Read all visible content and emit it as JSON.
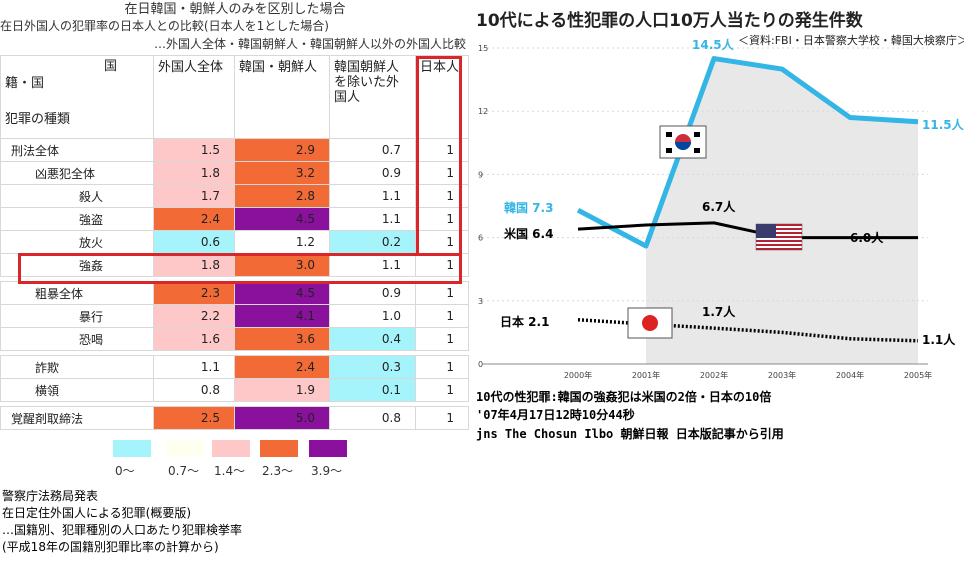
{
  "table": {
    "title": "在日韓国・朝鮮人のみを区別した場合",
    "subtitle1": "在日外国人の犯罪率の日本人との比較(日本人を1とした場合)",
    "subtitle2": "…外国人全体・韓国朝鮮人・韓国朝鮮人以外の外国人比較",
    "header_corner_top": "国",
    "header_corner_mid": "籍・国",
    "header_corner_bottom": "犯罪の種類",
    "columns": [
      "外国人全体",
      "韓国・朝鮮人",
      "韓国朝鮮人を除いた外国人",
      "日本人"
    ],
    "rows": [
      {
        "label": "刑法全体",
        "level": 0,
        "values": [
          "1.5",
          "2.9",
          "0.7",
          "1"
        ],
        "colors": [
          "#ffc8c8",
          "#f26b36",
          "#ffffff",
          "#ffffff"
        ]
      },
      {
        "label": "凶悪犯全体",
        "level": 1,
        "values": [
          "1.8",
          "3.2",
          "0.9",
          "1"
        ],
        "colors": [
          "#ffc8c8",
          "#f26b36",
          "#ffffff",
          "#ffffff"
        ]
      },
      {
        "label": "殺人",
        "level": 2,
        "values": [
          "1.7",
          "2.8",
          "1.1",
          "1"
        ],
        "colors": [
          "#ffc8c8",
          "#f26b36",
          "#ffffff",
          "#ffffff"
        ]
      },
      {
        "label": "強盗",
        "level": 2,
        "values": [
          "2.4",
          "4.5",
          "1.1",
          "1"
        ],
        "colors": [
          "#f26b36",
          "#8a119c",
          "#ffffff",
          "#ffffff"
        ]
      },
      {
        "label": "放火",
        "level": 2,
        "values": [
          "0.6",
          "1.2",
          "0.2",
          "1"
        ],
        "colors": [
          "#a6f4fb",
          "#ffffff",
          "#a6f4fb",
          "#ffffff"
        ]
      },
      {
        "label": "強姦",
        "level": 2,
        "values": [
          "1.8",
          "3.0",
          "1.1",
          "1"
        ],
        "colors": [
          "#ffc8c8",
          "#f26b36",
          "#ffffff",
          "#ffffff"
        ]
      },
      {
        "label": "粗暴全体",
        "level": 1,
        "values": [
          "2.3",
          "4.5",
          "0.9",
          "1"
        ],
        "colors": [
          "#f26b36",
          "#8a119c",
          "#ffffff",
          "#ffffff"
        ]
      },
      {
        "label": "暴行",
        "level": 2,
        "values": [
          "2.2",
          "4.1",
          "1.0",
          "1"
        ],
        "colors": [
          "#ffc8c8",
          "#8a119c",
          "#ffffff",
          "#ffffff"
        ]
      },
      {
        "label": "恐喝",
        "level": 2,
        "values": [
          "1.6",
          "3.6",
          "0.4",
          "1"
        ],
        "colors": [
          "#ffc8c8",
          "#f26b36",
          "#a6f4fb",
          "#ffffff"
        ]
      },
      {
        "label": "詐欺",
        "level": 1,
        "values": [
          "1.1",
          "2.4",
          "0.3",
          "1"
        ],
        "colors": [
          "#ffffff",
          "#f26b36",
          "#a6f4fb",
          "#ffffff"
        ]
      },
      {
        "label": "横領",
        "level": 1,
        "values": [
          "0.8",
          "1.9",
          "0.1",
          "1"
        ],
        "colors": [
          "#ffffff",
          "#ffc8c8",
          "#a6f4fb",
          "#ffffff"
        ]
      },
      {
        "label": "覚醒剤取締法",
        "level": 0,
        "values": [
          "2.5",
          "5.0",
          "0.8",
          "1"
        ],
        "colors": [
          "#f26b36",
          "#8a119c",
          "#ffffff",
          "#ffffff"
        ]
      }
    ],
    "legend": [
      {
        "label": "0〜",
        "color": "#a6f4fb"
      },
      {
        "label": "0.7〜",
        "color": "#ffffef"
      },
      {
        "label": "1.4〜",
        "color": "#ffc8c8"
      },
      {
        "label": "2.3〜",
        "color": "#f26b36"
      },
      {
        "label": "3.9〜",
        "color": "#8a119c"
      }
    ],
    "notes": [
      "警察庁法務局発表",
      "在日定住外国人による犯罪(概要版)",
      "…国籍別、犯罪種別の人口あたり犯罪検挙率",
      "(平成18年の国籍別犯罪比率の計算から)"
    ]
  },
  "chart_data": {
    "type": "line",
    "title": "10代による性犯罪の人口10万人当たりの発生件数",
    "source": "＜資料:FBI・日本警察大学校・韓国大検察庁＞",
    "x": [
      "2000年",
      "2001年",
      "2002年",
      "2003年",
      "2004年",
      "2005年"
    ],
    "ylim": [
      0,
      15
    ],
    "yticks": [
      "0",
      "3",
      "6",
      "9",
      "12",
      "15"
    ],
    "series": [
      {
        "name": "韓国",
        "color": "#33b5e5",
        "values": [
          7.3,
          5.6,
          14.5,
          14.0,
          11.7,
          11.5
        ],
        "labels": {
          "start": "韓国 7.3",
          "peak": "14.5人",
          "end": "11.5人"
        }
      },
      {
        "name": "米国",
        "color": "#000000",
        "values": [
          6.4,
          6.6,
          6.7,
          6.0,
          6.0,
          6.0
        ],
        "labels": {
          "start": "米国 6.4",
          "peak": "6.7人",
          "end": "6.0人"
        }
      },
      {
        "name": "日本",
        "color": "#000000",
        "values": [
          2.1,
          1.9,
          1.7,
          1.5,
          1.2,
          1.1
        ],
        "labels": {
          "start": "日本 2.1",
          "peak": "1.7人",
          "end": "1.1人"
        }
      }
    ],
    "caption": [
      "10代の性犯罪:韓国の強姦犯は米国の2倍・日本の10倍",
      "'07年4月17日12時10分44秒",
      "jns The Chosun Ilbo 朝鮮日報 日本版記事から引用"
    ]
  }
}
